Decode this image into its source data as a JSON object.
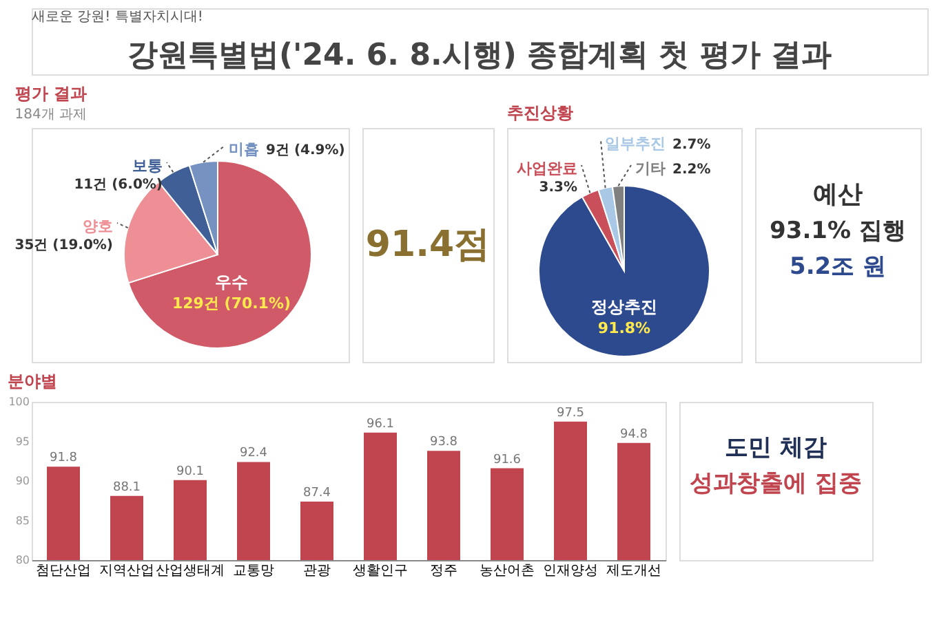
{
  "chart_data": [
    {
      "type": "other",
      "title": "강원특별법('24. 6. 8.시행) 종합계획 첫 평가 결과",
      "annotations": [
        "새로운 강원! 특별자치시대!"
      ]
    },
    {
      "type": "pie",
      "title": "평가 결과",
      "subtitle": "184개 과제",
      "categories": [
        "우수",
        "양호",
        "보통",
        "미흡"
      ],
      "values": [
        129,
        35,
        11,
        9
      ],
      "value_labels": [
        "129건 (70.1%)",
        "35건 (19.0%)",
        "11건 (6.0%)",
        "9건 (4.9%)"
      ],
      "colors": [
        "#d05a68",
        "#ee8f96",
        "#3f5f96",
        "#7592c0"
      ]
    },
    {
      "type": "other",
      "annotations": [
        "91.4점"
      ]
    },
    {
      "type": "pie",
      "title": "추진상황",
      "categories": [
        "정상추진",
        "사업완료",
        "일부추진",
        "기타"
      ],
      "values": [
        91.8,
        3.3,
        2.7,
        2.2
      ],
      "value_labels": [
        "91.8%",
        "3.3%",
        "2.7%",
        "2.2%"
      ],
      "colors": [
        "#2d4a8e",
        "#c9505a",
        "#a8c8e6",
        "#808080"
      ]
    },
    {
      "type": "other",
      "title": "예산",
      "annotations": [
        "93.1% 집행",
        "5.2조 원"
      ]
    },
    {
      "type": "bar",
      "title": "분야별",
      "categories": [
        "첨단산업",
        "지역산업",
        "산업생태계",
        "교통망",
        "관광",
        "생활인구",
        "정주",
        "농산어촌",
        "인재양성",
        "제도개선"
      ],
      "values": [
        91.8,
        88.1,
        90.1,
        92.4,
        87.4,
        96.1,
        93.8,
        91.6,
        97.5,
        94.8
      ],
      "color": "#c0454f",
      "ylim": [
        80,
        100
      ],
      "yticks": [
        80,
        85,
        90,
        95,
        100
      ],
      "data_labels": true,
      "grid": false
    },
    {
      "type": "other",
      "annotations": [
        "도민 체감",
        "성과창출에 집중"
      ]
    }
  ]
}
